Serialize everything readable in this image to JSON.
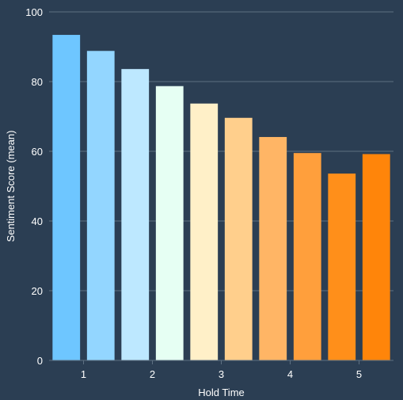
{
  "chart_data": {
    "type": "bar",
    "title": "",
    "xlabel": "Hold Time",
    "ylabel": "Sentiment Score (mean)",
    "ylim": [
      0,
      100
    ],
    "yticks": [
      0,
      20,
      40,
      60,
      80,
      100
    ],
    "x": [
      0.75,
      1.25,
      1.75,
      2.25,
      2.75,
      3.25,
      3.75,
      4.25,
      4.75,
      5.25
    ],
    "values": [
      93.4,
      88.8,
      83.6,
      78.7,
      73.7,
      69.6,
      64.1,
      59.5,
      53.6,
      59.2
    ],
    "xlim": [
      0.5,
      5.5
    ],
    "xticks": [
      1,
      2,
      3,
      4,
      5
    ],
    "bar_colors": [
      "#6ec6ff",
      "#93d6ff",
      "#bde8ff",
      "#e6fff3",
      "#fff0c8",
      "#ffcf8c",
      "#ffb565",
      "#ff9f3c",
      "#ff8f1a",
      "#ff850a"
    ],
    "grid": true,
    "legend": "none"
  },
  "theme": {
    "background": "#2b3e53",
    "grid_color": "#5e7082",
    "text_color": "#ffffff"
  }
}
